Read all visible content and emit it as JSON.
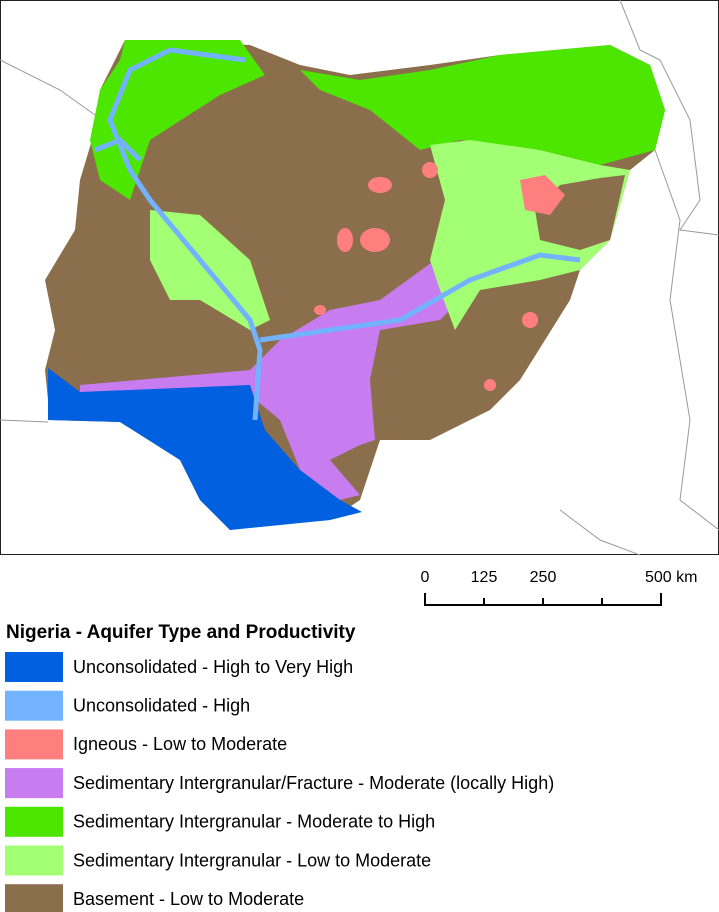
{
  "scale_bar": {
    "labels": [
      "0",
      "125",
      "250",
      "500 km"
    ]
  },
  "legend": {
    "title": "Nigeria - Aquifer Type and Productivity",
    "items": [
      {
        "label": "Unconsolidated - High to Very High",
        "color": "#0060e0"
      },
      {
        "label": "Unconsolidated - High",
        "color": "#73b2ff"
      },
      {
        "label": "Igneous - Low to Moderate",
        "color": "#ff7f7f"
      },
      {
        "label": "Sedimentary Intergranular/Fracture - Moderate (locally High)",
        "color": "#c77cf0"
      },
      {
        "label": "Sedimentary Intergranular - Moderate to High",
        "color": "#4ce600"
      },
      {
        "label": "Sedimentary Intergranular - Low to Moderate",
        "color": "#a3ff73"
      },
      {
        "label": "Basement - Low to Moderate",
        "color": "#8b6e4c"
      }
    ]
  }
}
